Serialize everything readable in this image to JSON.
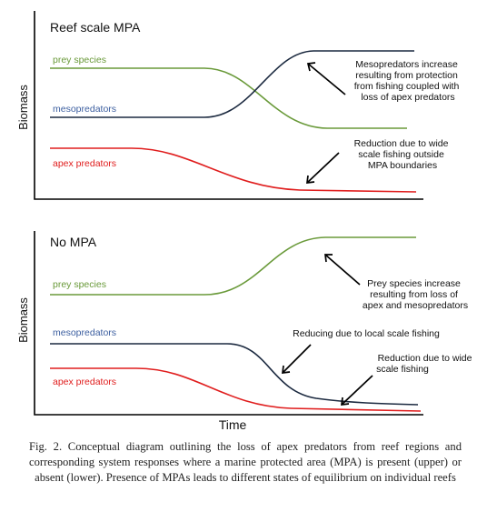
{
  "figure": {
    "colors": {
      "prey": "#6a9a3a",
      "meso": "#1c2a40",
      "meso_label": "#3d5fa0",
      "apex": "#e01e1e"
    },
    "xlabel": "Time",
    "panels": [
      {
        "title": "Reef scale MPA",
        "ylabel": "Biomass",
        "series": [
          {
            "name": "prey species",
            "trend": "high, then declines to a lower level"
          },
          {
            "name": "mesopredators",
            "trend": "low, then rises to a high level"
          },
          {
            "name": "apex predators",
            "trend": "declines to a low level"
          }
        ],
        "annotations": [
          {
            "lines": [
              "Mesopredators increase",
              "resulting from protection",
              "from fishing coupled with",
              "loss of apex predators"
            ]
          },
          {
            "lines": [
              "Reduction due to wide",
              "scale fishing outside",
              "MPA boundaries"
            ]
          }
        ]
      },
      {
        "title": "No MPA",
        "ylabel": "Biomass",
        "series": [
          {
            "name": "prey species",
            "trend": "rises to a high level"
          },
          {
            "name": "mesopredators",
            "trend": "declines to a low level"
          },
          {
            "name": "apex predators",
            "trend": "declines to a low level"
          }
        ],
        "annotations": [
          {
            "lines": [
              "Prey species increase",
              "resulting from loss of",
              "apex and mesopredators"
            ]
          },
          {
            "lines": [
              "Reducing due to local scale fishing"
            ]
          },
          {
            "lines": [
              "Reduction due to wide",
              "scale fishing"
            ]
          }
        ]
      }
    ]
  },
  "caption": "Fig. 2. Conceptual diagram outlining the loss of apex predators from reef regions and corresponding system responses where a marine protected area (MPA) is present (upper) or absent (lower). Presence of MPAs leads to different states of equilibrium on individual reefs"
}
